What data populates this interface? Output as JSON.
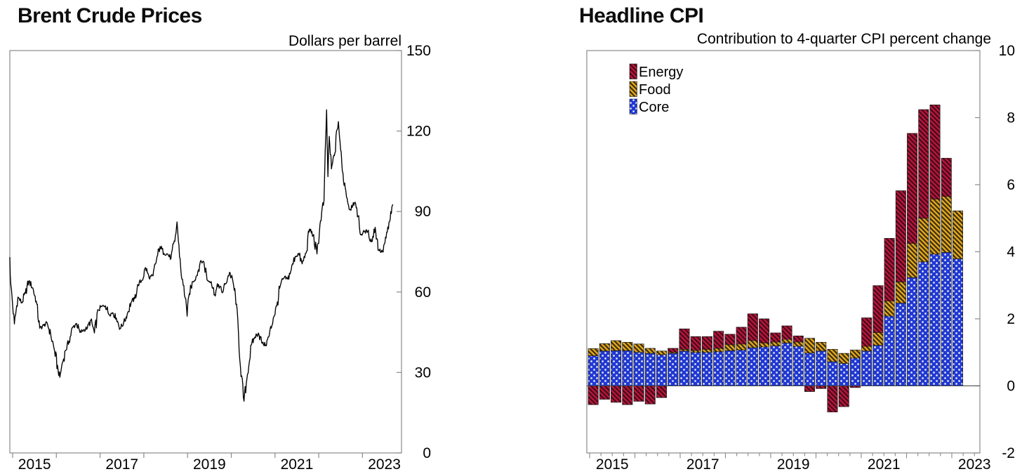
{
  "colors": {
    "background": "#ffffff",
    "axis_frame": "#8a8a8a",
    "tick": "#8a8a8a",
    "text": "#000000",
    "brent_line": "#000000",
    "zero_line": "#3f3f3f",
    "energy_fill": "#B5173A",
    "energy_hatch": "#45091B",
    "food_fill": "#DFA61F",
    "food_hatch": "#3a2b06",
    "core_fill": "#2038D2",
    "core_dot": "#ffffff"
  },
  "left_chart": {
    "title": "Brent Crude Prices",
    "unit_label": "Dollars per barrel",
    "y_tick_labels": [
      "0",
      "30",
      "60",
      "90",
      "120",
      "150"
    ],
    "x_year_labels": [
      "2015",
      "2017",
      "2019",
      "2021",
      "2023"
    ]
  },
  "right_chart": {
    "title": "Headline CPI",
    "subtitle": "Contribution to 4-quarter CPI percent change",
    "y_tick_labels": [
      "-2",
      "0",
      "2",
      "4",
      "6",
      "8",
      "10"
    ],
    "x_year_labels": [
      "2015",
      "2017",
      "2019",
      "2021",
      "2023"
    ],
    "legend": [
      {
        "label": "Energy",
        "key": "energy"
      },
      {
        "label": "Food",
        "key": "food"
      },
      {
        "label": "Core",
        "key": "core"
      }
    ]
  },
  "chart_data": [
    {
      "type": "line",
      "title": "Brent Crude Prices",
      "ylabel": "Dollars per barrel",
      "ylim": [
        0,
        150
      ],
      "y_ticks": [
        0,
        30,
        60,
        90,
        120,
        150
      ],
      "xlim": [
        2014.93,
        2023.95
      ],
      "x_ticks_years": [
        2015,
        2016,
        2017,
        2018,
        2019,
        2020,
        2021,
        2022,
        2023
      ],
      "x_label_years": [
        2015,
        2017,
        2019,
        2021,
        2023
      ],
      "grid": false,
      "points": [
        [
          2014.93,
          73
        ],
        [
          2014.96,
          62.5
        ],
        [
          2015.04,
          48.1
        ],
        [
          2015.12,
          58.1
        ],
        [
          2015.21,
          55.9
        ],
        [
          2015.29,
          59.5
        ],
        [
          2015.37,
          64.1
        ],
        [
          2015.46,
          61.5
        ],
        [
          2015.54,
          56.6
        ],
        [
          2015.62,
          46.5
        ],
        [
          2015.71,
          47.6
        ],
        [
          2015.79,
          48.4
        ],
        [
          2015.87,
          44.3
        ],
        [
          2015.96,
          38.0
        ],
        [
          2016.04,
          30.7
        ],
        [
          2016.08,
          28.2
        ],
        [
          2016.12,
          32.2
        ],
        [
          2016.21,
          38.2
        ],
        [
          2016.29,
          41.6
        ],
        [
          2016.37,
          46.7
        ],
        [
          2016.46,
          48.3
        ],
        [
          2016.54,
          44.9
        ],
        [
          2016.62,
          45.8
        ],
        [
          2016.71,
          46.6
        ],
        [
          2016.79,
          49.5
        ],
        [
          2016.87,
          44.7
        ],
        [
          2016.96,
          53.3
        ],
        [
          2017.04,
          54.6
        ],
        [
          2017.12,
          54.9
        ],
        [
          2017.21,
          51.6
        ],
        [
          2017.29,
          52.3
        ],
        [
          2017.37,
          50.3
        ],
        [
          2017.46,
          46.4
        ],
        [
          2017.54,
          48.5
        ],
        [
          2017.62,
          51.7
        ],
        [
          2017.71,
          56.2
        ],
        [
          2017.79,
          57.5
        ],
        [
          2017.87,
          62.7
        ],
        [
          2017.96,
          64.4
        ],
        [
          2018.04,
          69.1
        ],
        [
          2018.12,
          65.3
        ],
        [
          2018.21,
          66.0
        ],
        [
          2018.29,
          72.1
        ],
        [
          2018.37,
          76.9
        ],
        [
          2018.46,
          74.4
        ],
        [
          2018.54,
          74.2
        ],
        [
          2018.62,
          72.5
        ],
        [
          2018.71,
          78.9
        ],
        [
          2018.76,
          86.1
        ],
        [
          2018.79,
          79.0
        ],
        [
          2018.87,
          64.8
        ],
        [
          2018.96,
          57.4
        ],
        [
          2018.99,
          51.0
        ],
        [
          2019.04,
          59.4
        ],
        [
          2019.12,
          63.9
        ],
        [
          2019.21,
          66.1
        ],
        [
          2019.29,
          71.2
        ],
        [
          2019.37,
          71.3
        ],
        [
          2019.46,
          64.2
        ],
        [
          2019.54,
          63.9
        ],
        [
          2019.62,
          59.0
        ],
        [
          2019.71,
          62.8
        ],
        [
          2019.79,
          59.7
        ],
        [
          2019.87,
          63.2
        ],
        [
          2019.96,
          67.3
        ],
        [
          2020.04,
          63.7
        ],
        [
          2020.12,
          55.5
        ],
        [
          2020.21,
          32.0
        ],
        [
          2020.29,
          19.3
        ],
        [
          2020.37,
          29.4
        ],
        [
          2020.46,
          40.3
        ],
        [
          2020.54,
          43.2
        ],
        [
          2020.62,
          44.7
        ],
        [
          2020.71,
          40.9
        ],
        [
          2020.79,
          40.2
        ],
        [
          2020.87,
          43.9
        ],
        [
          2020.96,
          50.2
        ],
        [
          2021.04,
          54.8
        ],
        [
          2021.12,
          62.3
        ],
        [
          2021.21,
          65.4
        ],
        [
          2021.29,
          64.8
        ],
        [
          2021.37,
          68.3
        ],
        [
          2021.46,
          73.2
        ],
        [
          2021.54,
          74.3
        ],
        [
          2021.62,
          70.5
        ],
        [
          2021.71,
          74.5
        ],
        [
          2021.79,
          83.5
        ],
        [
          2021.87,
          81.1
        ],
        [
          2021.96,
          74.2
        ],
        [
          2022.04,
          86.5
        ],
        [
          2022.12,
          94.1
        ],
        [
          2022.18,
          127.9
        ],
        [
          2022.21,
          103.0
        ],
        [
          2022.24,
          118.0
        ],
        [
          2022.29,
          105.9
        ],
        [
          2022.37,
          111.9
        ],
        [
          2022.42,
          120.5
        ],
        [
          2022.45,
          123.5
        ],
        [
          2022.5,
          113.0
        ],
        [
          2022.54,
          105.1
        ],
        [
          2022.62,
          97.7
        ],
        [
          2022.71,
          90.6
        ],
        [
          2022.79,
          93.3
        ],
        [
          2022.87,
          91.4
        ],
        [
          2022.96,
          81.3
        ],
        [
          2023.04,
          82.5
        ],
        [
          2023.12,
          82.6
        ],
        [
          2023.21,
          78.7
        ],
        [
          2023.29,
          84.1
        ],
        [
          2023.37,
          75.7
        ],
        [
          2023.46,
          74.9
        ],
        [
          2023.54,
          80.1
        ],
        [
          2023.62,
          86.2
        ],
        [
          2023.7,
          92.6
        ]
      ]
    },
    {
      "type": "bar",
      "stacked": true,
      "title": "Headline CPI",
      "ylabel": "Contribution to 4-quarter CPI percent change",
      "ylim": [
        -2,
        10
      ],
      "y_ticks": [
        -2,
        0,
        2,
        4,
        6,
        8,
        10
      ],
      "x_ticks_years": [
        2015,
        2016,
        2017,
        2018,
        2019,
        2020,
        2021,
        2022,
        2023
      ],
      "x_label_years": [
        2015,
        2017,
        2019,
        2021,
        2023
      ],
      "grid": false,
      "legend_position": "top-left",
      "categories": [
        "2015Q1",
        "2015Q2",
        "2015Q3",
        "2015Q4",
        "2016Q1",
        "2016Q2",
        "2016Q3",
        "2016Q4",
        "2017Q1",
        "2017Q2",
        "2017Q3",
        "2017Q4",
        "2018Q1",
        "2018Q2",
        "2018Q3",
        "2018Q4",
        "2019Q1",
        "2019Q2",
        "2019Q3",
        "2019Q4",
        "2020Q1",
        "2020Q2",
        "2020Q3",
        "2020Q4",
        "2021Q1",
        "2021Q2",
        "2021Q3",
        "2021Q4",
        "2022Q1",
        "2022Q2",
        "2022Q3",
        "2022Q4",
        "2023Q1"
      ],
      "series": [
        {
          "name": "Core",
          "values": [
            0.9,
            1.04,
            1.05,
            1.05,
            1.0,
            0.97,
            0.93,
            0.97,
            1.04,
            1.0,
            1.0,
            1.02,
            1.05,
            1.07,
            1.14,
            1.16,
            1.19,
            1.28,
            1.18,
            0.98,
            1.04,
            0.72,
            0.67,
            0.83,
            1.04,
            1.21,
            2.08,
            2.47,
            3.23,
            3.7,
            3.93,
            3.98,
            3.79
          ]
        },
        {
          "name": "Food",
          "values": [
            0.21,
            0.22,
            0.3,
            0.25,
            0.25,
            0.15,
            0.11,
            0.03,
            0.05,
            0.06,
            0.09,
            0.1,
            0.18,
            0.18,
            0.21,
            0.12,
            0.12,
            0.11,
            0.13,
            0.44,
            0.26,
            0.37,
            0.3,
            0.24,
            0.14,
            0.38,
            0.45,
            0.63,
            1.02,
            1.3,
            1.64,
            1.67,
            1.43
          ]
        },
        {
          "name": "Energy",
          "values": [
            -0.56,
            -0.4,
            -0.49,
            -0.56,
            -0.46,
            -0.54,
            -0.35,
            0.12,
            0.61,
            0.41,
            0.38,
            0.51,
            0.31,
            0.5,
            0.8,
            0.72,
            0.27,
            0.4,
            0.18,
            -0.17,
            -0.08,
            -0.78,
            -0.62,
            -0.05,
            0.85,
            1.4,
            1.87,
            2.72,
            3.28,
            3.24,
            2.81,
            1.14,
            0.0
          ]
        }
      ]
    }
  ]
}
